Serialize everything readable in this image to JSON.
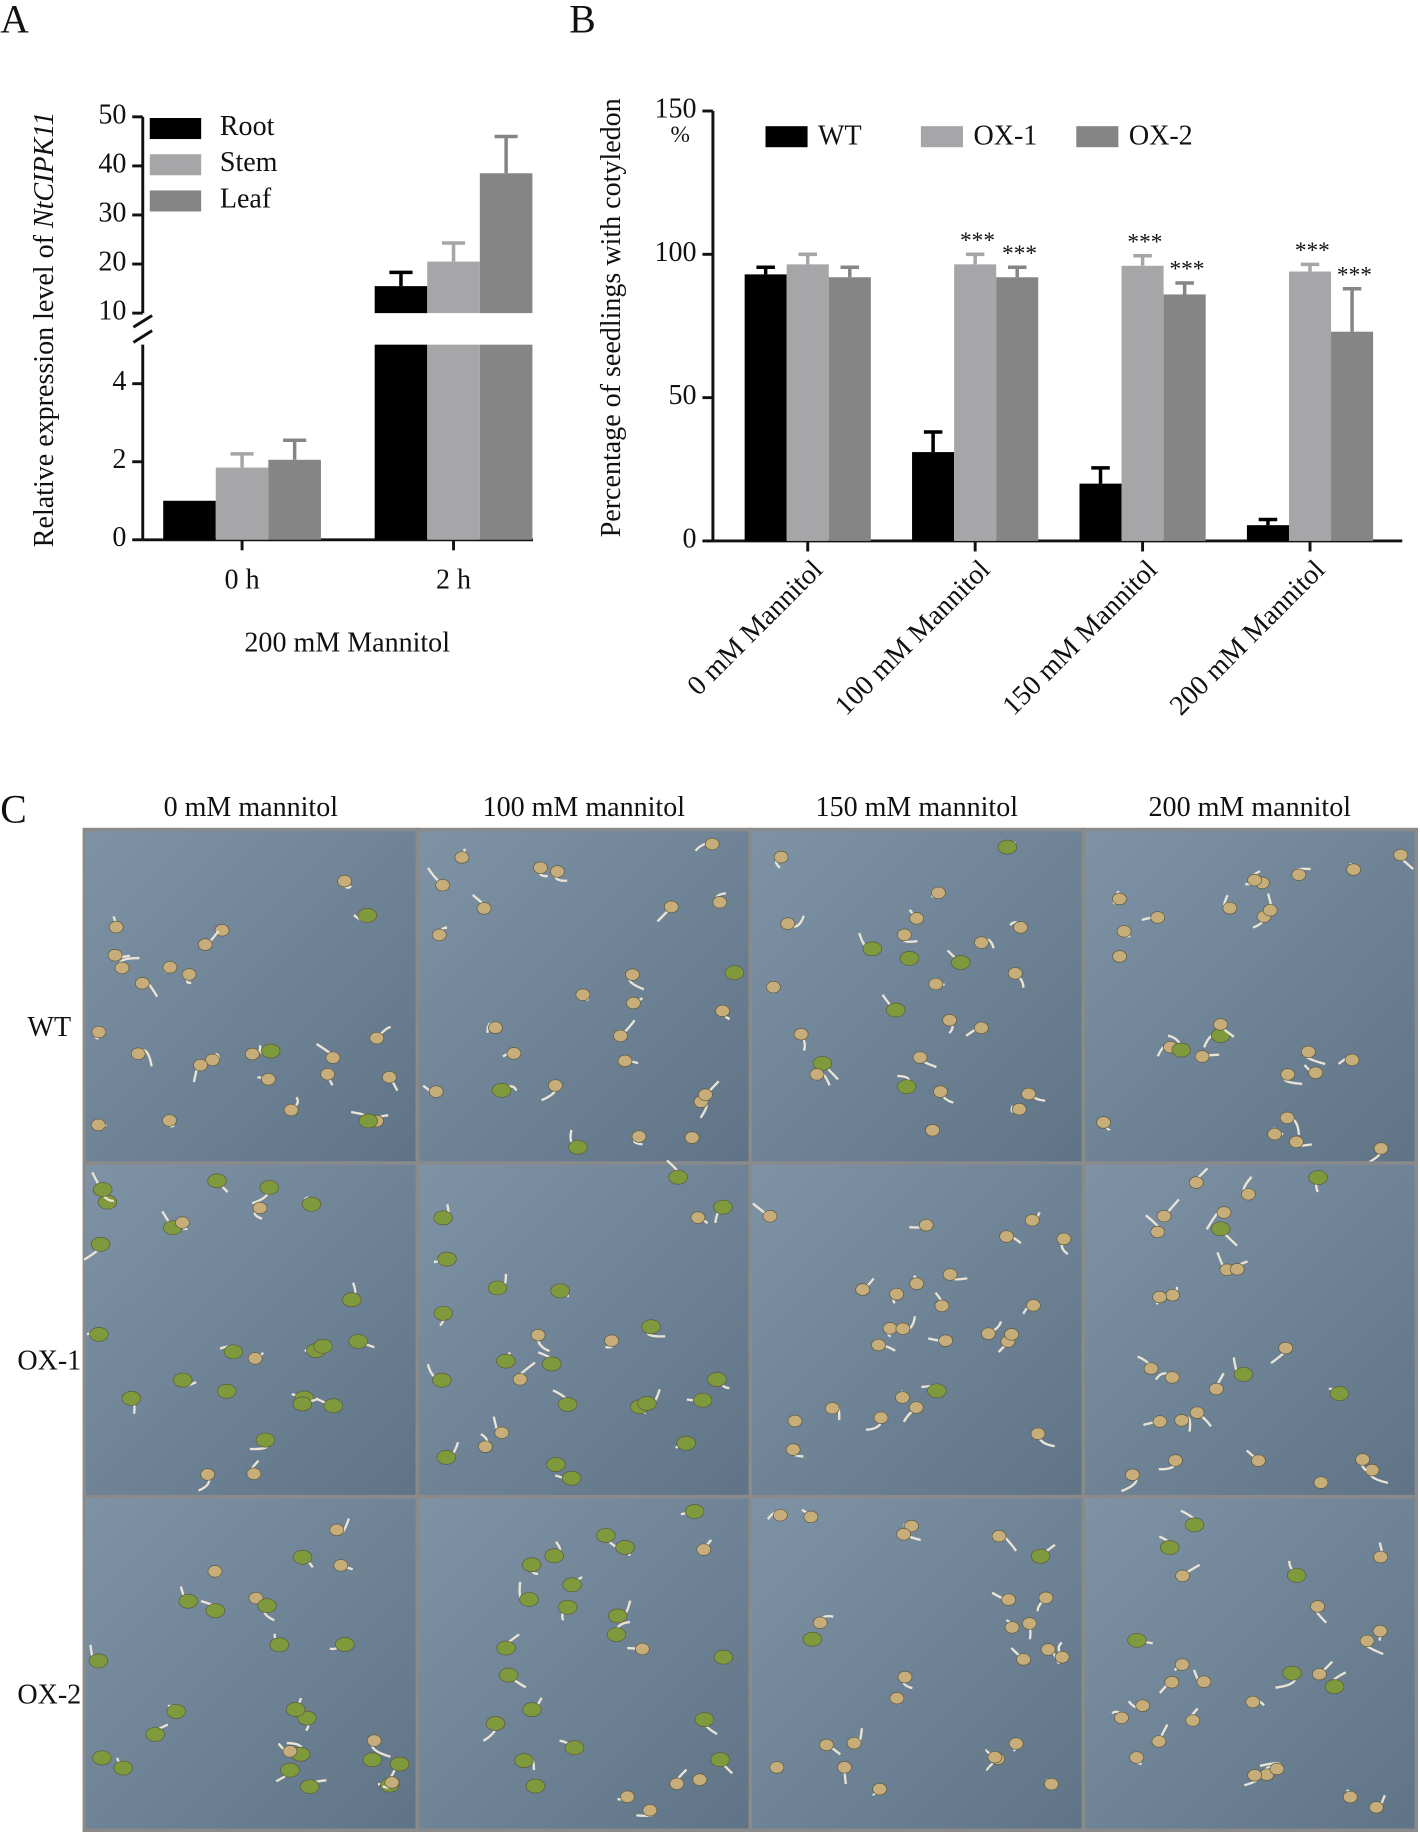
{
  "chart_data": [
    {
      "type": "bar",
      "panel": "A",
      "y_label": {
        "text": "Relative expression level of",
        "gene": "NtCIPK11"
      },
      "x_label": "200 mM Mannitol",
      "categories": [
        "0 h",
        "2 h"
      ],
      "series": [
        {
          "name": "Root",
          "color": "#000000",
          "values": [
            1.0,
            15.5
          ],
          "errors": [
            null,
            2.8
          ]
        },
        {
          "name": "Stem",
          "color": "#a6a6a9",
          "values": [
            1.85,
            20.5
          ],
          "errors": [
            0.35,
            3.8
          ]
        },
        {
          "name": "Leaf",
          "color": "#858585",
          "values": [
            2.05,
            38.5
          ],
          "errors": [
            0.5,
            7.5
          ]
        }
      ],
      "ylim": [
        0,
        50
      ],
      "ybreak": [
        5,
        10
      ],
      "yticks": [
        0,
        2,
        4,
        10,
        20,
        30,
        40,
        50
      ],
      "legend": "upper-left"
    },
    {
      "type": "bar",
      "panel": "B",
      "y_label": "Percentage of seedlings with cotyledon",
      "categories": [
        "0 mM Mannitol",
        "100 mM Mannitol",
        "150 mM Mannitol",
        "200 mM Mannitol"
      ],
      "series": [
        {
          "name": "WT",
          "color": "#000000",
          "values": [
            93,
            31,
            20,
            5.5
          ],
          "errors": [
            2.5,
            7,
            5.5,
            2
          ],
          "significance": [
            null,
            null,
            null,
            null
          ]
        },
        {
          "name": "OX-1",
          "color": "#a6a6a9",
          "values": [
            96.5,
            96.5,
            96,
            94
          ],
          "errors": [
            3.5,
            3.5,
            3.5,
            2.5
          ],
          "significance": [
            null,
            "***",
            "***",
            "***"
          ]
        },
        {
          "name": "OX-2",
          "color": "#858585",
          "values": [
            92,
            92,
            86,
            73
          ],
          "errors": [
            3.5,
            3.5,
            4,
            15
          ],
          "significance": [
            null,
            "***",
            "***",
            "***"
          ]
        }
      ],
      "ylim": [
        0,
        150
      ],
      "yticks": [
        0,
        50,
        100,
        150
      ],
      "y_unit": "%",
      "legend": "top"
    }
  ],
  "photo_grid": {
    "panel": "C",
    "columns": [
      "0 mM mannitol",
      "100 mM mannitol",
      "150 mM mannitol",
      "200 mM mannitol"
    ],
    "rows": [
      "WT",
      "OX-1",
      "OX-2"
    ]
  }
}
